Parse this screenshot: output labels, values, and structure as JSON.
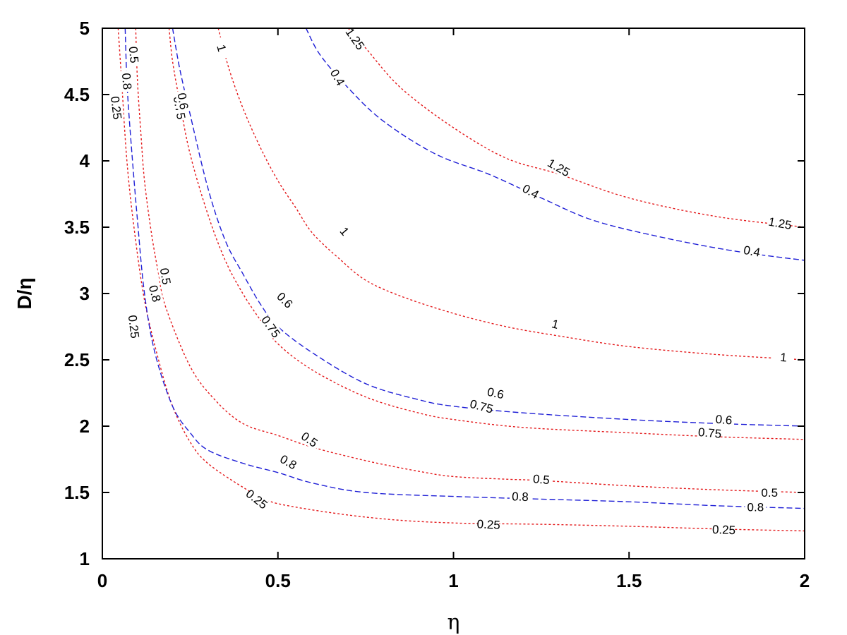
{
  "chart_data": {
    "type": "line",
    "xlabel": "η",
    "ylabel": "D/η",
    "xlim": [
      0,
      2
    ],
    "ylim": [
      1,
      5
    ],
    "xticks": [
      "0",
      "0.5",
      "1",
      "1.5",
      "2"
    ],
    "yticks": [
      "1",
      "1.5",
      "2",
      "2.5",
      "3",
      "3.5",
      "4",
      "4.5",
      "5"
    ],
    "grid": false,
    "legend": "none",
    "colors": {
      "red": "#e41a1c",
      "blue": "#1f1fd6",
      "axis": "#000000"
    },
    "series": [
      {
        "color": "red",
        "dash": "dotted",
        "x": [
          0.045,
          0.055,
          0.07,
          0.09,
          0.12,
          0.16,
          0.2,
          0.25,
          0.3,
          0.4,
          0.47,
          0.55,
          0.7,
          0.85,
          1.0,
          1.1,
          1.25,
          1.5,
          1.75,
          2.0
        ],
        "y": [
          5.0,
          4.6,
          4.0,
          3.5,
          2.95,
          2.5,
          2.15,
          1.88,
          1.72,
          1.54,
          1.44,
          1.39,
          1.33,
          1.29,
          1.27,
          1.265,
          1.26,
          1.245,
          1.225,
          1.21
        ],
        "labels": [
          {
            "text": "0.25",
            "x": 0.04,
            "y": 4.4,
            "angle": 83
          },
          {
            "text": "0.25",
            "x": 0.09,
            "y": 2.75,
            "angle": 83
          },
          {
            "text": "0.25",
            "x": 0.44,
            "y": 1.45,
            "angle": 38
          },
          {
            "text": "0.25",
            "x": 1.1,
            "y": 1.26,
            "angle": 3
          },
          {
            "text": "0.25",
            "x": 1.77,
            "y": 1.22,
            "angle": 2
          }
        ]
      },
      {
        "color": "red",
        "dash": "dotted",
        "x": [
          0.095,
          0.1,
          0.11,
          0.12,
          0.14,
          0.16,
          0.18,
          0.25,
          0.32,
          0.4,
          0.5,
          0.6,
          0.75,
          0.9,
          1.0,
          1.15,
          1.25,
          1.5,
          1.75,
          2.0
        ],
        "y": [
          5.0,
          4.6,
          4.2,
          3.85,
          3.45,
          3.15,
          2.9,
          2.45,
          2.2,
          2.02,
          1.93,
          1.84,
          1.74,
          1.66,
          1.62,
          1.6,
          1.59,
          1.55,
          1.52,
          1.5
        ],
        "labels": [
          {
            "text": "0.5",
            "x": 0.09,
            "y": 4.8,
            "angle": 85
          },
          {
            "text": "0.5",
            "x": 0.18,
            "y": 3.13,
            "angle": 80
          },
          {
            "text": "0.5",
            "x": 0.59,
            "y": 1.9,
            "angle": 35
          },
          {
            "text": "0.5",
            "x": 1.25,
            "y": 1.6,
            "angle": 5
          },
          {
            "text": "0.5",
            "x": 1.9,
            "y": 1.5,
            "angle": 0
          }
        ]
      },
      {
        "color": "red",
        "dash": "dotted",
        "x": [
          0.19,
          0.2,
          0.22,
          0.25,
          0.3,
          0.35,
          0.4,
          0.45,
          0.5,
          0.6,
          0.75,
          0.9,
          1.0,
          1.2,
          1.5,
          1.75,
          2.0
        ],
        "y": [
          5.0,
          4.75,
          4.45,
          4.05,
          3.6,
          3.25,
          3.0,
          2.8,
          2.62,
          2.42,
          2.22,
          2.1,
          2.05,
          1.99,
          1.95,
          1.92,
          1.9
        ],
        "labels": [
          {
            "text": "0.75",
            "x": 0.22,
            "y": 4.4,
            "angle": 80
          },
          {
            "text": "0.75",
            "x": 0.48,
            "y": 2.75,
            "angle": 55
          },
          {
            "text": "0.75",
            "x": 1.08,
            "y": 2.15,
            "angle": 15
          },
          {
            "text": "0.75",
            "x": 1.73,
            "y": 1.95,
            "angle": 5
          }
        ]
      },
      {
        "color": "red",
        "dash": "dotted",
        "x": [
          0.33,
          0.36,
          0.4,
          0.45,
          0.5,
          0.55,
          0.6,
          0.68,
          0.75,
          0.85,
          1.0,
          1.15,
          1.3,
          1.5,
          1.75,
          2.0
        ],
        "y": [
          5.0,
          4.7,
          4.4,
          4.1,
          3.85,
          3.65,
          3.45,
          3.25,
          3.1,
          2.98,
          2.85,
          2.75,
          2.68,
          2.6,
          2.54,
          2.5
        ],
        "labels": [
          {
            "text": "1",
            "x": 0.34,
            "y": 4.85,
            "angle": 75
          },
          {
            "text": "1",
            "x": 0.69,
            "y": 3.47,
            "angle": 50
          },
          {
            "text": "1",
            "x": 1.29,
            "y": 2.77,
            "angle": 15
          },
          {
            "text": "1",
            "x": 1.94,
            "y": 2.52,
            "angle": 5
          }
        ]
      },
      {
        "color": "red",
        "dash": "dotted",
        "x": [
          0.7,
          0.75,
          0.85,
          1.0,
          1.15,
          1.3,
          1.5,
          1.75,
          2.0
        ],
        "y": [
          5.0,
          4.85,
          4.55,
          4.25,
          4.02,
          3.9,
          3.72,
          3.58,
          3.5
        ],
        "labels": [
          {
            "text": "1.25",
            "x": 0.72,
            "y": 4.92,
            "angle": 55
          },
          {
            "text": "1.25",
            "x": 1.3,
            "y": 3.95,
            "angle": 30
          },
          {
            "text": "1.25",
            "x": 1.93,
            "y": 3.53,
            "angle": 10
          }
        ]
      },
      {
        "color": "blue",
        "dash": "dashed",
        "x": [
          0.065,
          0.07,
          0.08,
          0.1,
          0.12,
          0.15,
          0.2,
          0.25,
          0.3,
          0.4,
          0.5,
          0.6,
          0.75,
          1.0,
          1.25,
          1.5,
          1.75,
          2.0
        ],
        "y": [
          5.0,
          4.6,
          4.2,
          3.55,
          3.0,
          2.55,
          2.15,
          1.95,
          1.82,
          1.72,
          1.65,
          1.57,
          1.5,
          1.47,
          1.45,
          1.43,
          1.4,
          1.38
        ],
        "labels": [
          {
            "text": "0.8",
            "x": 0.07,
            "y": 4.6,
            "angle": 85
          },
          {
            "text": "0.8",
            "x": 0.15,
            "y": 3.0,
            "angle": 75
          },
          {
            "text": "0.8",
            "x": 0.53,
            "y": 1.73,
            "angle": 30
          },
          {
            "text": "0.8",
            "x": 1.19,
            "y": 1.47,
            "angle": 2
          },
          {
            "text": "0.8",
            "x": 1.86,
            "y": 1.39,
            "angle": 0
          }
        ]
      },
      {
        "color": "blue",
        "dash": "dashed",
        "x": [
          0.2,
          0.22,
          0.25,
          0.3,
          0.35,
          0.4,
          0.45,
          0.5,
          0.6,
          0.75,
          0.9,
          1.0,
          1.2,
          1.5,
          1.75,
          2.0
        ],
        "y": [
          5.0,
          4.7,
          4.35,
          3.8,
          3.4,
          3.15,
          2.92,
          2.75,
          2.55,
          2.32,
          2.2,
          2.15,
          2.1,
          2.05,
          2.02,
          2.0
        ],
        "labels": [
          {
            "text": "0.6",
            "x": 0.23,
            "y": 4.45,
            "angle": 80
          },
          {
            "text": "0.6",
            "x": 0.52,
            "y": 2.95,
            "angle": 45
          },
          {
            "text": "0.6",
            "x": 1.12,
            "y": 2.25,
            "angle": 12
          },
          {
            "text": "0.6",
            "x": 1.77,
            "y": 2.05,
            "angle": 5
          }
        ]
      },
      {
        "color": "blue",
        "dash": "dashed",
        "x": [
          0.58,
          0.62,
          0.7,
          0.8,
          0.95,
          1.1,
          1.25,
          1.4,
          1.6,
          1.8,
          2.0
        ],
        "y": [
          5.0,
          4.8,
          4.55,
          4.3,
          4.05,
          3.9,
          3.72,
          3.55,
          3.42,
          3.32,
          3.25
        ],
        "labels": [
          {
            "text": "0.4",
            "x": 0.67,
            "y": 4.63,
            "angle": 60
          },
          {
            "text": "0.4",
            "x": 1.22,
            "y": 3.77,
            "angle": 30
          },
          {
            "text": "0.4",
            "x": 1.85,
            "y": 3.32,
            "angle": 10
          }
        ]
      }
    ]
  }
}
